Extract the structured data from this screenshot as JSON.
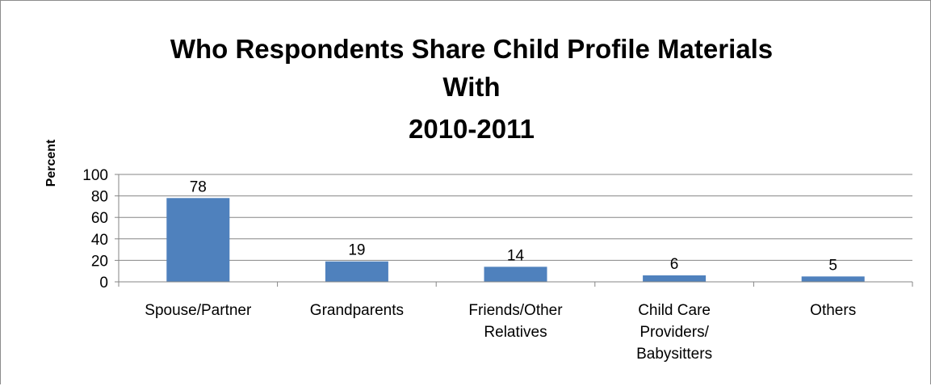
{
  "chart_data": {
    "type": "bar",
    "title_lines": [
      "Who Respondents Share Child Profile Materials",
      "With",
      "2010-2011"
    ],
    "ylabel": "Percent",
    "xlabel": "",
    "ylim": [
      0,
      100
    ],
    "yticks": [
      0,
      20,
      40,
      60,
      80,
      100
    ],
    "grid": true,
    "legend": "none",
    "bar_color": "#4f81bd",
    "categories": [
      [
        "Spouse/Partner"
      ],
      [
        "Grandparents"
      ],
      [
        "Friends/Other",
        "Relatives"
      ],
      [
        "Child Care",
        "Providers/",
        "Babysitters"
      ],
      [
        "Others"
      ]
    ],
    "values": [
      78,
      19,
      14,
      6,
      5
    ]
  }
}
